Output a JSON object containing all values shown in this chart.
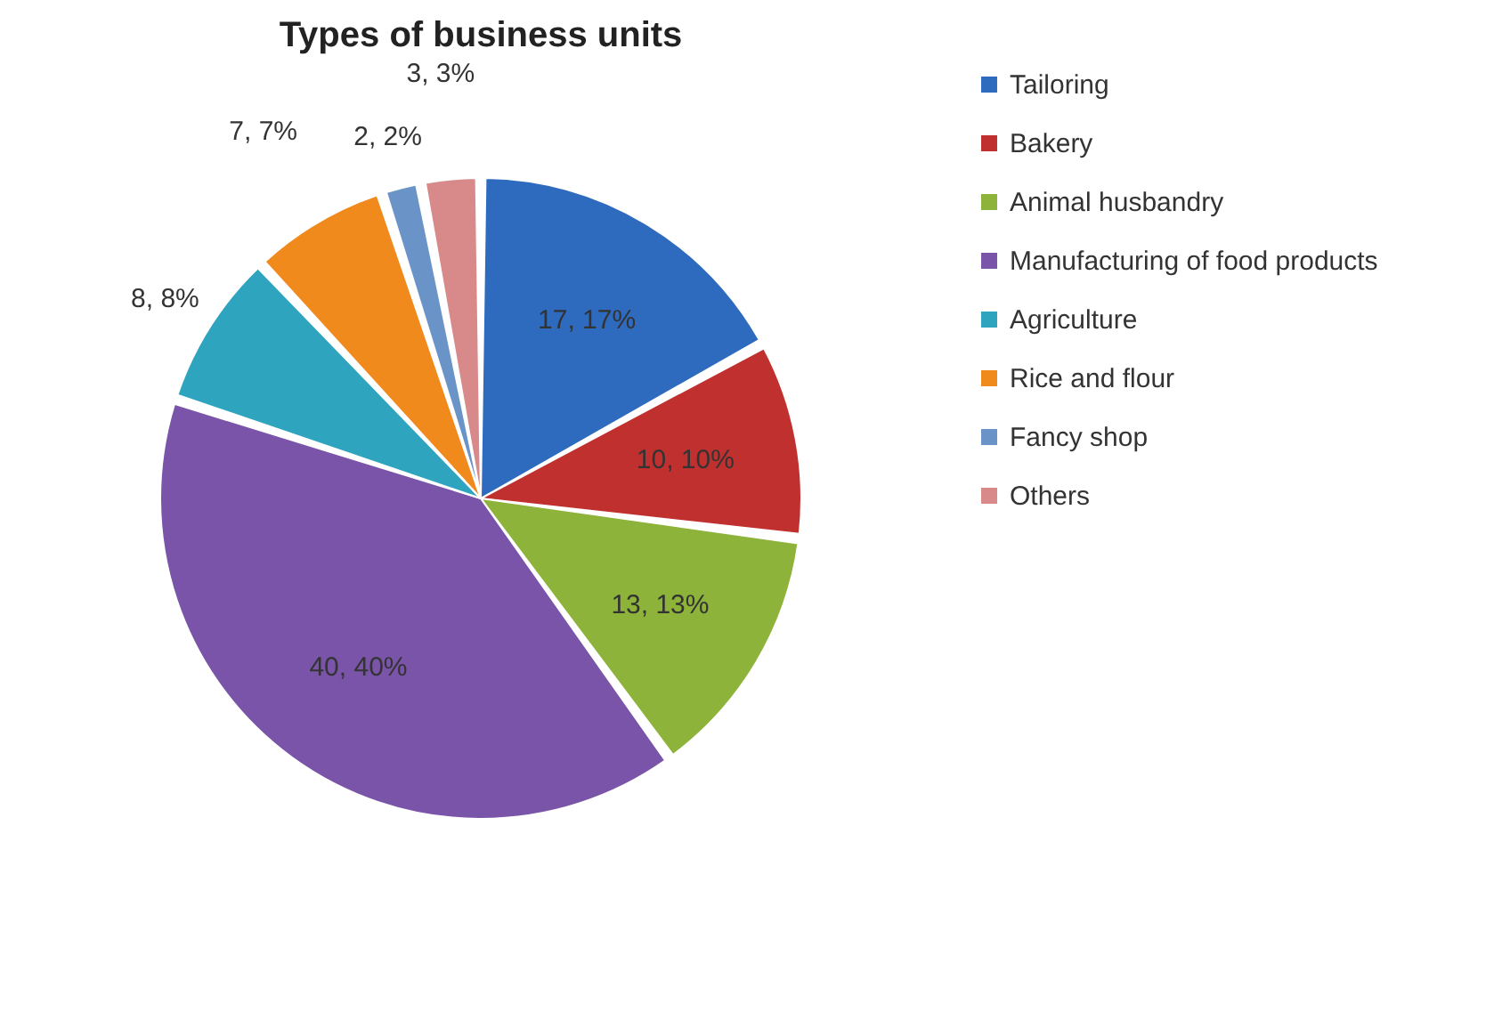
{
  "chart_data": {
    "type": "pie",
    "title": "Types of business units",
    "categories": [
      "Tailoring",
      "Bakery",
      "Animal husbandry",
      "Manufacturing of food products",
      "Agriculture",
      "Rice and flour",
      "Fancy shop",
      "Others"
    ],
    "values": [
      17,
      10,
      13,
      40,
      8,
      7,
      2,
      3
    ],
    "value_labels": [
      "17, 17%",
      "10, 10%",
      "13, 13%",
      "40, 40%",
      "8, 8%",
      "7, 7%",
      "2, 2%",
      "3, 3%"
    ],
    "colors": [
      "#2e6bbf",
      "#c0302e",
      "#8db33a",
      "#7a54a8",
      "#2ea4bf",
      "#f08a1d",
      "#6a93c8",
      "#d88a8a"
    ],
    "legend": "right"
  }
}
